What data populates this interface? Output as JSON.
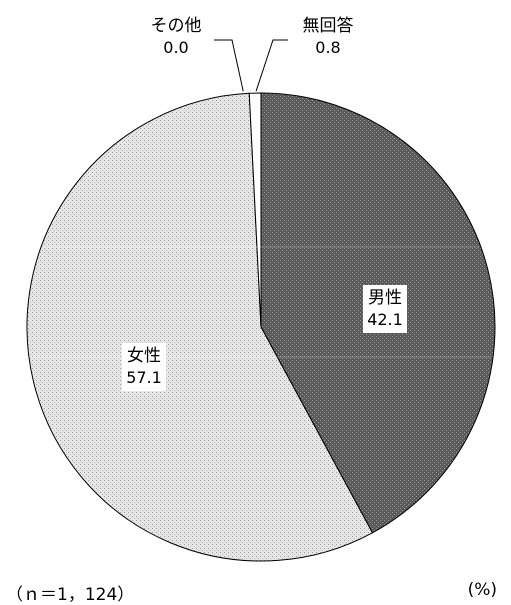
{
  "chart_data": {
    "type": "pie",
    "start": "top",
    "direction": "clockwise",
    "slices": [
      {
        "label": "男性",
        "value": 42.1,
        "value_text": "42.1",
        "color": "#5a5a5a",
        "pattern": "dense-dark"
      },
      {
        "label": "女性",
        "value": 57.1,
        "value_text": "57.1",
        "color": "#d8d8d8",
        "pattern": "light-dotted"
      },
      {
        "label": "その他",
        "value": 0.0,
        "value_text": "0.0",
        "color": "#ffffff",
        "pattern": "none"
      },
      {
        "label": "無回答",
        "value": 0.8,
        "value_text": "0.8",
        "color": "#ffffff",
        "pattern": "none"
      }
    ]
  },
  "notes": {
    "sample_size": "（ｎ＝1，124）",
    "unit": "(%)"
  }
}
